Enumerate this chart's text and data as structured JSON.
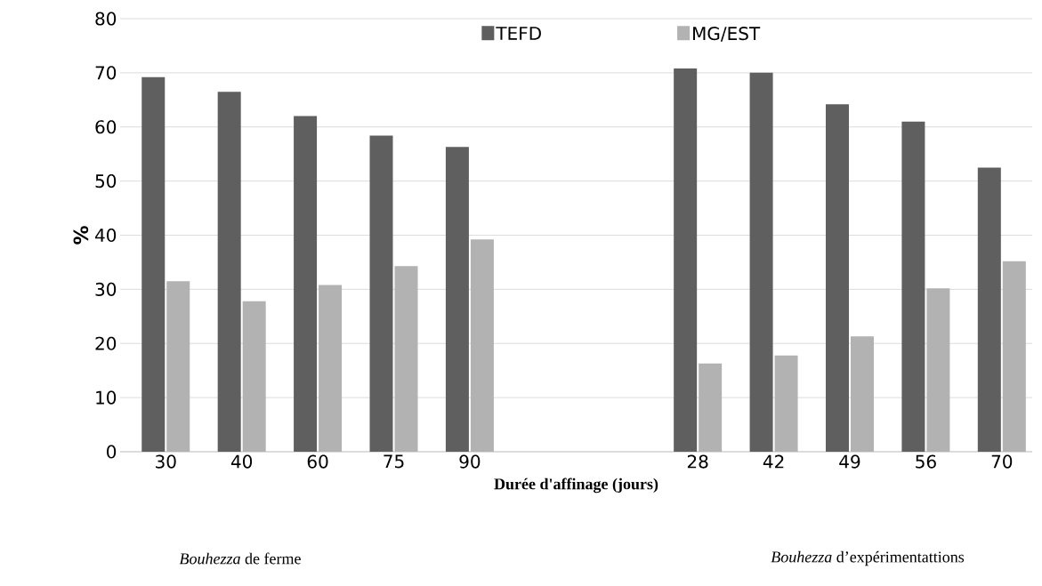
{
  "chart_data": {
    "type": "bar",
    "xlabel": "Durée d'affinage (jours)",
    "ylabel": "%",
    "categories": [
      "30",
      "40",
      "60",
      "75",
      "90",
      null,
      null,
      "28",
      "42",
      "49",
      "56",
      "70"
    ],
    "series": [
      {
        "name": "TEFD",
        "color": "#5f5f5f",
        "values": [
          69.2,
          66.5,
          62.0,
          58.4,
          56.3,
          null,
          null,
          70.8,
          70.0,
          64.2,
          61.0,
          52.5
        ]
      },
      {
        "name": "MG/EST",
        "color": "#b2b2b2",
        "values": [
          31.5,
          27.8,
          30.8,
          34.3,
          39.2,
          null,
          null,
          16.3,
          17.8,
          21.3,
          30.2,
          35.2
        ]
      }
    ],
    "ylim": [
      0,
      80
    ],
    "yticks": [
      0,
      10,
      20,
      30,
      40,
      50,
      60,
      70,
      80
    ],
    "grid": "y",
    "legend": "top",
    "annotations": [
      "*Bouhezza* de ferme",
      "*Bouhezza* d’expérimentattions"
    ]
  }
}
